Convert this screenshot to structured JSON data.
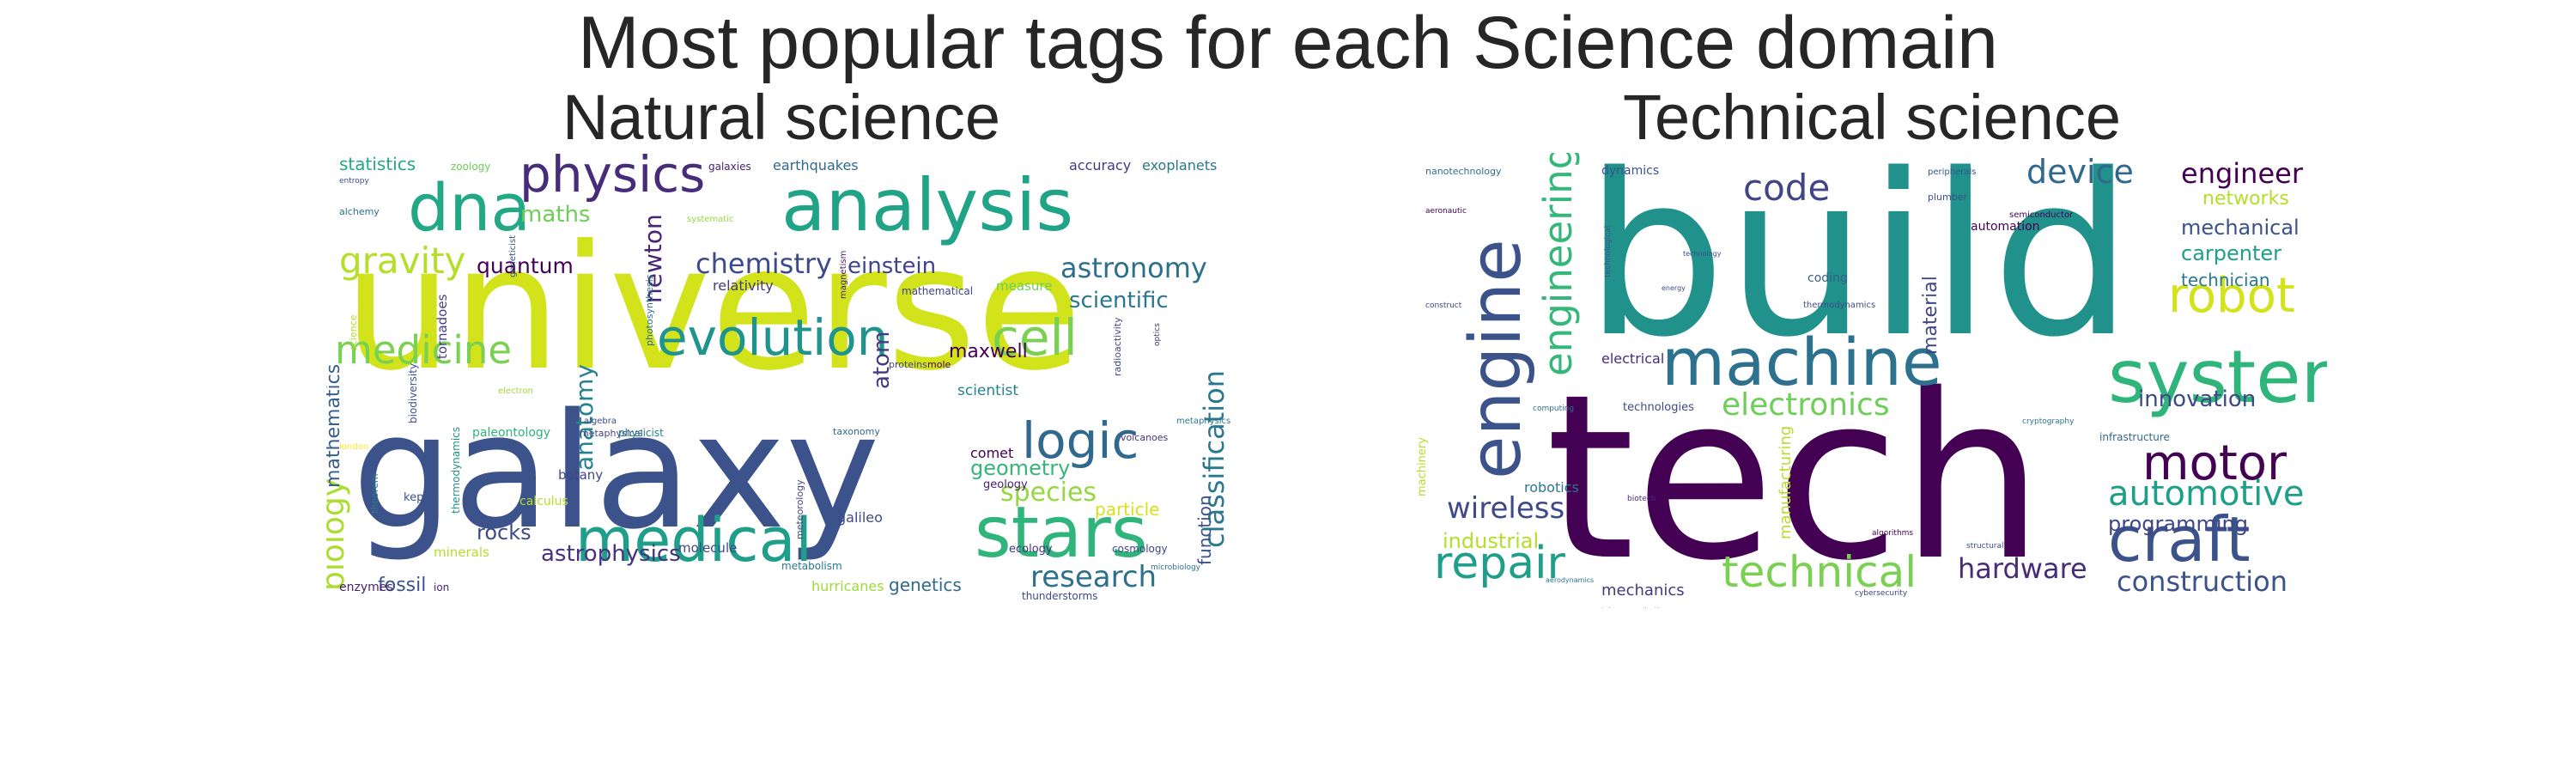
{
  "figure": {
    "title": "Most popular tags for each Science domain"
  },
  "panels": [
    {
      "title": "Natural science",
      "words": [
        {
          "text": "universe",
          "color": "#d2e21b"
        },
        {
          "text": "galaxy",
          "color": "#3b528b"
        },
        {
          "text": "analysis",
          "color": "#20a386"
        },
        {
          "text": "evolution",
          "color": "#1f948c"
        },
        {
          "text": "dna",
          "color": "#22a884"
        },
        {
          "text": "physics",
          "color": "#472c7a"
        },
        {
          "text": "cell",
          "color": "#7ad151"
        },
        {
          "text": "stars",
          "color": "#2fb47c"
        },
        {
          "text": "medical",
          "color": "#1f9e89"
        },
        {
          "text": "logic",
          "color": "#31688e"
        },
        {
          "text": "medicine",
          "color": "#7ad151"
        },
        {
          "text": "gravity",
          "color": "#b5de2b"
        },
        {
          "text": "classification",
          "color": "#2a788e"
        },
        {
          "text": "biology",
          "color": "#addc30"
        },
        {
          "text": "astronomy",
          "color": "#2d708e"
        },
        {
          "text": "chemistry",
          "color": "#3e4989"
        },
        {
          "text": "research",
          "color": "#2c728e"
        },
        {
          "text": "quantum",
          "color": "#440154"
        },
        {
          "text": "newton",
          "color": "#482475"
        },
        {
          "text": "species",
          "color": "#95d840"
        },
        {
          "text": "maths",
          "color": "#6ece58"
        },
        {
          "text": "einstein",
          "color": "#414487"
        },
        {
          "text": "scientific",
          "color": "#2a788e"
        },
        {
          "text": "atom",
          "color": "#443983"
        },
        {
          "text": "particle",
          "color": "#d8e219"
        },
        {
          "text": "maxwell",
          "color": "#440154"
        },
        {
          "text": "anatomy",
          "color": "#26828e"
        },
        {
          "text": "mathematics",
          "color": "#355f8d"
        },
        {
          "text": "geometry",
          "color": "#35b779"
        },
        {
          "text": "rocks",
          "color": "#3e4989"
        },
        {
          "text": "function",
          "color": "#3b528b"
        },
        {
          "text": "statistics",
          "color": "#22a884"
        },
        {
          "text": "genetics",
          "color": "#31688e"
        },
        {
          "text": "scientist",
          "color": "#26828e"
        },
        {
          "text": "fossil",
          "color": "#3b528b"
        },
        {
          "text": "comet",
          "color": "#440154"
        },
        {
          "text": "astrophysics",
          "color": "#46327e"
        },
        {
          "text": "relativity",
          "color": "#443983"
        },
        {
          "text": "earthquakes",
          "color": "#31688e"
        },
        {
          "text": "accuracy",
          "color": "#443983"
        },
        {
          "text": "exoplanets",
          "color": "#2a788e"
        },
        {
          "text": "galaxies",
          "color": "#482173"
        },
        {
          "text": "mathematical",
          "color": "#414487"
        },
        {
          "text": "measure",
          "color": "#6ece58"
        },
        {
          "text": "tornadoes",
          "color": "#424086"
        },
        {
          "text": "biodiversity",
          "color": "#39568c"
        },
        {
          "text": "photosynthesis",
          "color": "#2d708e"
        },
        {
          "text": "botany",
          "color": "#404688"
        },
        {
          "text": "kepler",
          "color": "#3b528b"
        },
        {
          "text": "calculus",
          "color": "#b5de2b"
        },
        {
          "text": "galileo",
          "color": "#3e4989"
        },
        {
          "text": "geology",
          "color": "#481f70"
        },
        {
          "text": "ecology",
          "color": "#46327e"
        },
        {
          "text": "cosmology",
          "color": "#414487"
        },
        {
          "text": "minerals",
          "color": "#b5de2b"
        },
        {
          "text": "molecule",
          "color": "#3e4989"
        },
        {
          "text": "metabolism",
          "color": "#2a788e"
        },
        {
          "text": "hurricanes",
          "color": "#9fda3a"
        },
        {
          "text": "thunderstorms",
          "color": "#3e4989"
        },
        {
          "text": "enzymes",
          "color": "#481f70"
        },
        {
          "text": "ion",
          "color": "#482475"
        },
        {
          "text": "metaphysical",
          "color": "#414487"
        },
        {
          "text": "algebra",
          "color": "#3e4989"
        },
        {
          "text": "paleontology",
          "color": "#2fb47c"
        },
        {
          "text": "physicist",
          "color": "#26828e"
        },
        {
          "text": "taxonomy",
          "color": "#31688e"
        },
        {
          "text": "mole",
          "color": "#440154"
        },
        {
          "text": "proteins",
          "color": "#414487"
        },
        {
          "text": "volcanoes",
          "color": "#46327e"
        },
        {
          "text": "metaphysics",
          "color": "#2a788e"
        },
        {
          "text": "radioactivity",
          "color": "#404688"
        },
        {
          "text": "magnetism",
          "color": "#481f70"
        },
        {
          "text": "optics",
          "color": "#46327e"
        },
        {
          "text": "zoology",
          "color": "#6ece58"
        },
        {
          "text": "entropy",
          "color": "#3e4989"
        },
        {
          "text": "alchemy",
          "color": "#2c728e"
        },
        {
          "text": "thermodynamics",
          "color": "#21918c"
        },
        {
          "text": "theorem",
          "color": "#2a788e"
        },
        {
          "text": "meteorology",
          "color": "#414487"
        },
        {
          "text": "microbiology",
          "color": "#2c728e"
        },
        {
          "text": "electron",
          "color": "#9fda3a"
        },
        {
          "text": "systematic",
          "color": "#95d840"
        },
        {
          "text": "science",
          "color": "#b5de2b"
        },
        {
          "text": "london",
          "color": "#fde725"
        },
        {
          "text": "geneticist",
          "color": "#3b528b"
        }
      ]
    },
    {
      "title": "Technical science",
      "words": [
        {
          "text": "build",
          "color": "#21918c"
        },
        {
          "text": "tech",
          "color": "#440154"
        },
        {
          "text": "system",
          "color": "#2fb47c"
        },
        {
          "text": "machine",
          "color": "#2c728e"
        },
        {
          "text": "engine",
          "color": "#3b528b"
        },
        {
          "text": "craft",
          "color": "#3b528b"
        },
        {
          "text": "robot",
          "color": "#d2e21b"
        },
        {
          "text": "motor",
          "color": "#440154"
        },
        {
          "text": "engineering",
          "color": "#35b779"
        },
        {
          "text": "technical",
          "color": "#7ad151"
        },
        {
          "text": "repair",
          "color": "#1f9e89"
        },
        {
          "text": "automotive",
          "color": "#1f9e89"
        },
        {
          "text": "code",
          "color": "#414487"
        },
        {
          "text": "electronics",
          "color": "#6ece58"
        },
        {
          "text": "wireless",
          "color": "#3e4989"
        },
        {
          "text": "device",
          "color": "#31688e"
        },
        {
          "text": "engineer",
          "color": "#440154"
        },
        {
          "text": "construction",
          "color": "#3b528b"
        },
        {
          "text": "hardware",
          "color": "#472c7a"
        },
        {
          "text": "innovation",
          "color": "#3e4989"
        },
        {
          "text": "programming",
          "color": "#404688"
        },
        {
          "text": "mechanical",
          "color": "#3b528b"
        },
        {
          "text": "material",
          "color": "#404688"
        },
        {
          "text": "networks",
          "color": "#b5de2b"
        },
        {
          "text": "carpenter",
          "color": "#1f9e89"
        },
        {
          "text": "industrial",
          "color": "#b5de2b"
        },
        {
          "text": "mechanics",
          "color": "#443983"
        },
        {
          "text": "manufacturing",
          "color": "#b5de2b"
        },
        {
          "text": "technician",
          "color": "#2a788e"
        },
        {
          "text": "robotics",
          "color": "#2a788e"
        },
        {
          "text": "electrical",
          "color": "#472c7a"
        },
        {
          "text": "technologies",
          "color": "#3e4989"
        },
        {
          "text": "infrastructure",
          "color": "#31688e"
        },
        {
          "text": "automation",
          "color": "#440154"
        },
        {
          "text": "coding",
          "color": "#355f8d"
        },
        {
          "text": "thermodynamics",
          "color": "#3e4989"
        },
        {
          "text": "dynamics",
          "color": "#3b528b"
        },
        {
          "text": "machinery",
          "color": "#b5de2b"
        },
        {
          "text": "nanotechnology",
          "color": "#2c728e"
        },
        {
          "text": "peripherals",
          "color": "#3b528b"
        },
        {
          "text": "semiconductor",
          "color": "#440154"
        },
        {
          "text": "plumber",
          "color": "#3b528b"
        },
        {
          "text": "aeronautic",
          "color": "#440154"
        },
        {
          "text": "technological",
          "color": "#39568c"
        },
        {
          "text": "construct",
          "color": "#3e4989"
        },
        {
          "text": "cryptography",
          "color": "#2a788e"
        },
        {
          "text": "algorithms",
          "color": "#440154"
        },
        {
          "text": "structural",
          "color": "#3b528b"
        },
        {
          "text": "telecommunications",
          "color": "#2a788e"
        },
        {
          "text": "cybersecurity",
          "color": "#414487"
        },
        {
          "text": "biotech",
          "color": "#472c7a"
        },
        {
          "text": "computing",
          "color": "#2c728e"
        },
        {
          "text": "technology",
          "color": "#3b528b"
        },
        {
          "text": "aerodynamics",
          "color": "#2a788e"
        },
        {
          "text": "energy",
          "color": "#3e4989"
        }
      ]
    }
  ]
}
